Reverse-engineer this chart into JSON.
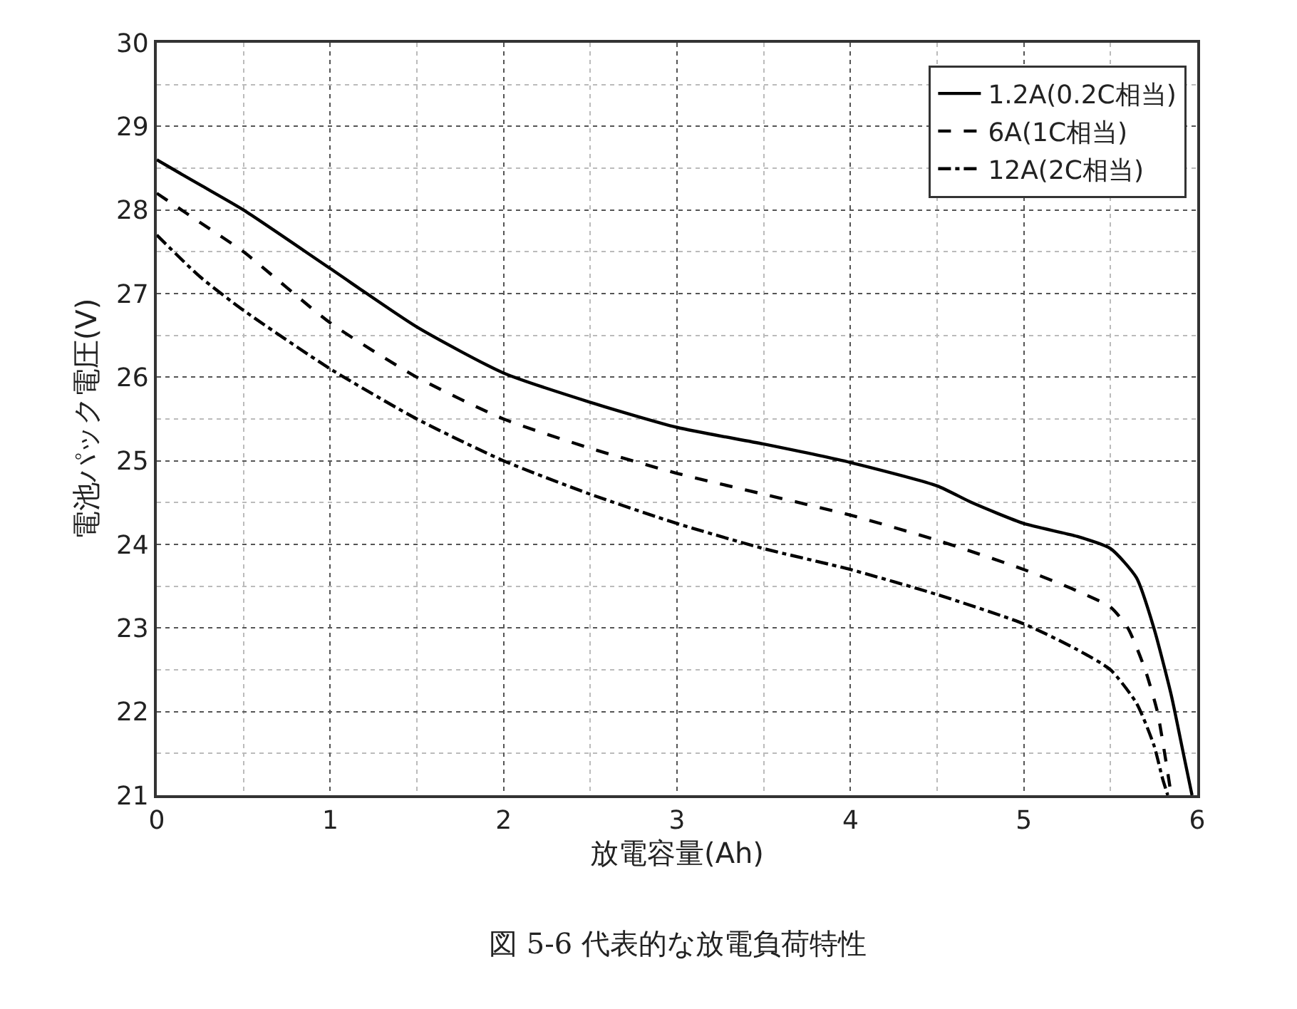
{
  "chart_data": {
    "type": "line",
    "xlabel": "放電容量(Ah)",
    "ylabel": "電池パック電圧(V)",
    "xlim": [
      0,
      6
    ],
    "ylim": [
      21,
      30
    ],
    "xticks": [
      0,
      1,
      2,
      3,
      4,
      5,
      6
    ],
    "yticks": [
      21,
      22,
      23,
      24,
      25,
      26,
      27,
      28,
      29,
      30
    ],
    "grid": true,
    "legend": "top right",
    "marker": "none",
    "annotations": [
      "図 5-6 代表的な放電負荷特性"
    ],
    "series": [
      {
        "name": "1.2A(0.2C相当)",
        "color": "#000000",
        "line_style": "solid",
        "x": [
          0,
          0.25,
          0.5,
          1,
          1.5,
          2,
          2.5,
          3,
          3.5,
          4,
          4.5,
          4.7,
          5,
          5.3,
          5.5,
          5.65,
          5.75,
          5.85,
          5.92,
          5.97
        ],
        "values": [
          28.6,
          28.3,
          28.0,
          27.3,
          26.6,
          26.05,
          25.7,
          25.4,
          25.2,
          24.98,
          24.7,
          24.5,
          24.25,
          24.1,
          23.95,
          23.6,
          23.0,
          22.2,
          21.5,
          21.0
        ]
      },
      {
        "name": "6A(1C相当)",
        "color": "#000000",
        "line_style": "dashed",
        "x": [
          0,
          0.25,
          0.5,
          1,
          1.5,
          2,
          2.5,
          3,
          3.5,
          4,
          4.5,
          5,
          5.3,
          5.5,
          5.6,
          5.7,
          5.77,
          5.82,
          5.85
        ],
        "values": [
          28.2,
          27.85,
          27.5,
          26.65,
          26.0,
          25.5,
          25.15,
          24.85,
          24.6,
          24.35,
          24.05,
          23.7,
          23.45,
          23.25,
          23.0,
          22.5,
          22.0,
          21.4,
          21.0
        ]
      },
      {
        "name": "12A(2C相当)",
        "color": "#000000",
        "line_style": "dashdot",
        "x": [
          0,
          0.25,
          0.5,
          1,
          1.5,
          2,
          2.5,
          3,
          3.5,
          4,
          4.5,
          5,
          5.3,
          5.5,
          5.65,
          5.75,
          5.8,
          5.83
        ],
        "values": [
          27.7,
          27.2,
          26.8,
          26.1,
          25.5,
          25.0,
          24.6,
          24.25,
          23.95,
          23.7,
          23.4,
          23.05,
          22.75,
          22.5,
          22.1,
          21.6,
          21.2,
          21.0
        ]
      }
    ]
  }
}
